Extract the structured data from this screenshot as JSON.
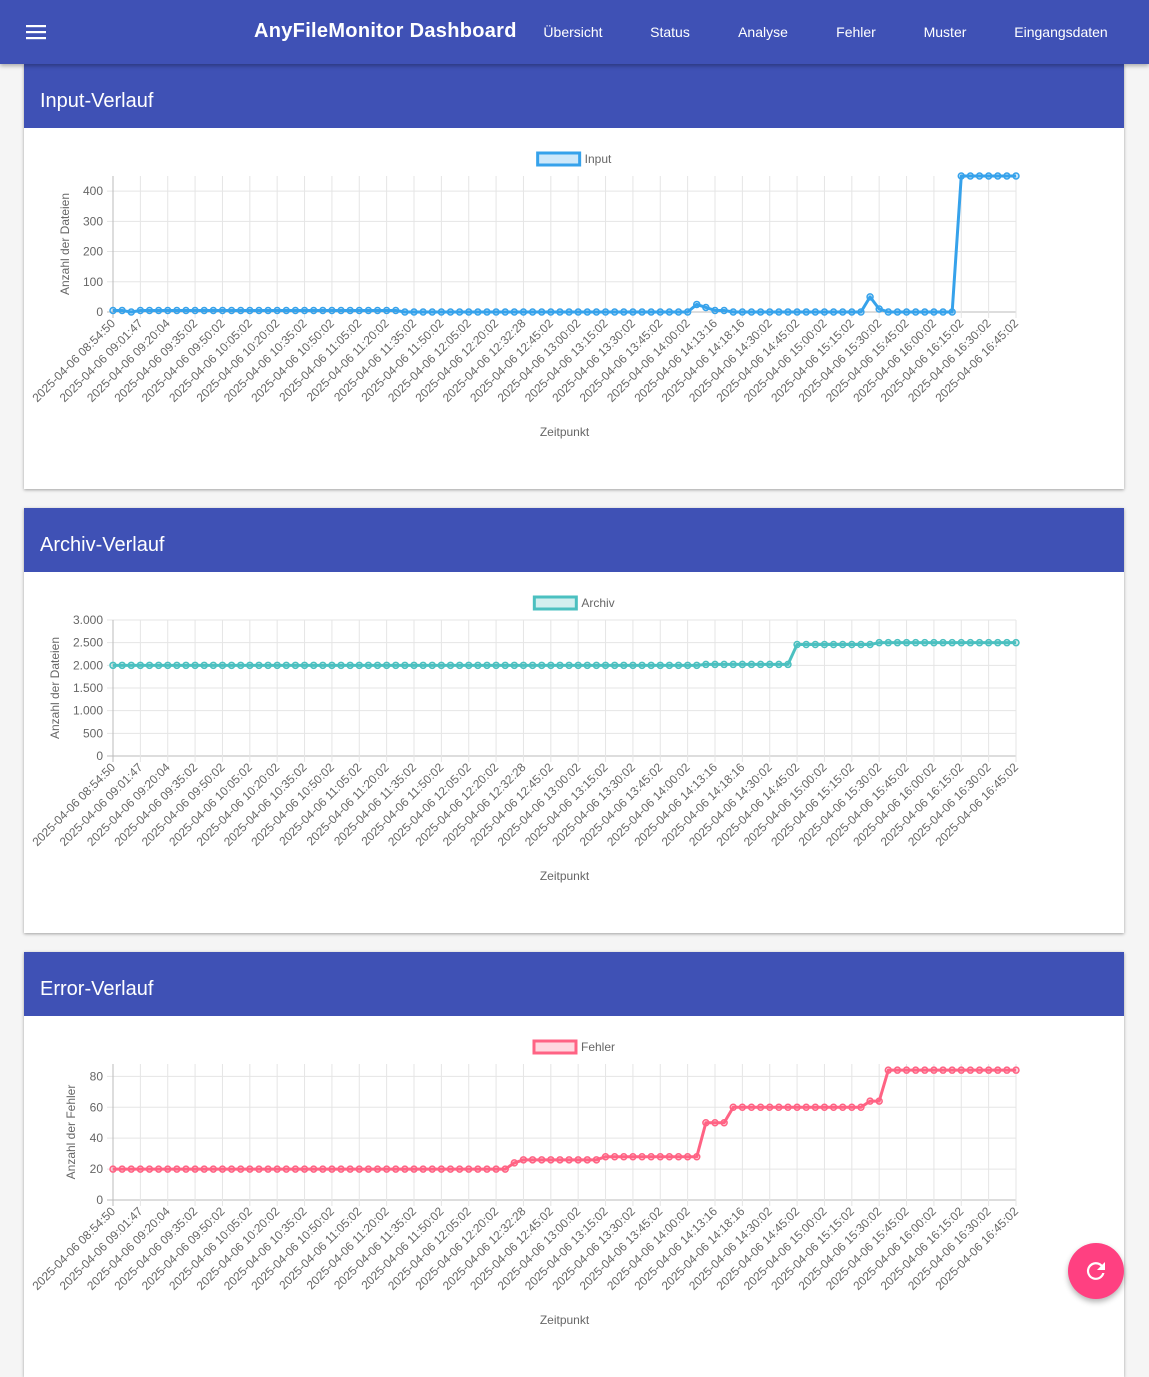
{
  "nav": {
    "title": "AnyFileMonitor Dashboard",
    "items": [
      "Übersicht",
      "Status",
      "Analyse",
      "Fehler",
      "Muster",
      "Eingangsdaten"
    ]
  },
  "chart_data": [
    {
      "type": "line",
      "title": "Input-Verlauf",
      "x_label": "Zeitpunkt",
      "y_label": "Anzahl der Dateien",
      "grid": true,
      "legend": "top",
      "categories": [
        "2025-04-06 08:54:50",
        null,
        null,
        "2025-04-06 09:01:47",
        null,
        null,
        "2025-04-06 09:20:04",
        null,
        null,
        "2025-04-06 09:35:02",
        null,
        null,
        "2025-04-06 09:50:02",
        null,
        null,
        "2025-04-06 10:05:02",
        null,
        null,
        "2025-04-06 10:20:02",
        null,
        null,
        "2025-04-06 10:35:02",
        null,
        null,
        "2025-04-06 10:50:02",
        null,
        null,
        "2025-04-06 11:05:02",
        null,
        null,
        "2025-04-06 11:20:02",
        null,
        null,
        "2025-04-06 11:35:02",
        null,
        null,
        "2025-04-06 11:50:02",
        null,
        null,
        "2025-04-06 12:05:02",
        null,
        null,
        "2025-04-06 12:20:02",
        null,
        null,
        "2025-04-06 12:32:28",
        null,
        null,
        "2025-04-06 12:45:02",
        null,
        null,
        "2025-04-06 13:00:02",
        null,
        null,
        "2025-04-06 13:15:02",
        null,
        null,
        "2025-04-06 13:30:02",
        null,
        null,
        "2025-04-06 13:45:02",
        null,
        null,
        "2025-04-06 14:00:02",
        null,
        null,
        "2025-04-06 14:13:16",
        null,
        null,
        "2025-04-06 14:18:16",
        null,
        null,
        "2025-04-06 14:30:02",
        null,
        null,
        "2025-04-06 14:45:02",
        null,
        null,
        "2025-04-06 15:00:02",
        null,
        null,
        "2025-04-06 15:15:02",
        null,
        null,
        "2025-04-06 15:30:02",
        null,
        null,
        "2025-04-06 15:45:02",
        null,
        null,
        "2025-04-06 16:00:02",
        null,
        null,
        "2025-04-06 16:15:02",
        null,
        null,
        "2025-04-06 16:30:02",
        null,
        null,
        "2025-04-06 16:45:02"
      ],
      "series": [
        {
          "name": "Input",
          "color": "#36a2eb",
          "fill": "rgba(54,162,235,0.25)",
          "values": [
            5,
            5,
            0,
            5,
            5,
            5,
            5,
            5,
            5,
            5,
            5,
            5,
            5,
            5,
            5,
            5,
            5,
            5,
            5,
            5,
            5,
            5,
            5,
            5,
            5,
            5,
            5,
            5,
            5,
            5,
            5,
            5,
            0,
            0,
            0,
            0,
            0,
            0,
            0,
            0,
            0,
            0,
            0,
            0,
            0,
            0,
            0,
            0,
            0,
            0,
            0,
            0,
            0,
            0,
            0,
            0,
            0,
            0,
            0,
            0,
            0,
            0,
            0,
            0,
            25,
            15,
            5,
            5,
            0,
            0,
            0,
            0,
            0,
            0,
            0,
            0,
            0,
            0,
            0,
            0,
            0,
            0,
            0,
            50,
            10,
            0,
            0,
            0,
            0,
            0,
            0,
            0,
            0,
            450,
            450,
            450,
            450,
            450,
            450,
            450
          ]
        }
      ],
      "ylim": [
        0,
        450
      ],
      "yticks": [
        0,
        100,
        200,
        300,
        400
      ]
    },
    {
      "type": "line",
      "title": "Archiv-Verlauf",
      "x_label": "Zeitpunkt",
      "y_label": "Anzahl der Dateien",
      "grid": true,
      "legend": "top",
      "categories": [
        "2025-04-06 08:54:50",
        null,
        null,
        "2025-04-06 09:01:47",
        null,
        null,
        "2025-04-06 09:20:04",
        null,
        null,
        "2025-04-06 09:35:02",
        null,
        null,
        "2025-04-06 09:50:02",
        null,
        null,
        "2025-04-06 10:05:02",
        null,
        null,
        "2025-04-06 10:20:02",
        null,
        null,
        "2025-04-06 10:35:02",
        null,
        null,
        "2025-04-06 10:50:02",
        null,
        null,
        "2025-04-06 11:05:02",
        null,
        null,
        "2025-04-06 11:20:02",
        null,
        null,
        "2025-04-06 11:35:02",
        null,
        null,
        "2025-04-06 11:50:02",
        null,
        null,
        "2025-04-06 12:05:02",
        null,
        null,
        "2025-04-06 12:20:02",
        null,
        null,
        "2025-04-06 12:32:28",
        null,
        null,
        "2025-04-06 12:45:02",
        null,
        null,
        "2025-04-06 13:00:02",
        null,
        null,
        "2025-04-06 13:15:02",
        null,
        null,
        "2025-04-06 13:30:02",
        null,
        null,
        "2025-04-06 13:45:02",
        null,
        null,
        "2025-04-06 14:00:02",
        null,
        null,
        "2025-04-06 14:13:16",
        null,
        null,
        "2025-04-06 14:18:16",
        null,
        null,
        "2025-04-06 14:30:02",
        null,
        null,
        "2025-04-06 14:45:02",
        null,
        null,
        "2025-04-06 15:00:02",
        null,
        null,
        "2025-04-06 15:15:02",
        null,
        null,
        "2025-04-06 15:30:02",
        null,
        null,
        "2025-04-06 15:45:02",
        null,
        null,
        "2025-04-06 16:00:02",
        null,
        null,
        "2025-04-06 16:15:02",
        null,
        null,
        "2025-04-06 16:30:02",
        null,
        null,
        "2025-04-06 16:45:02"
      ],
      "series": [
        {
          "name": "Archiv",
          "color": "#4bc0c0",
          "fill": "rgba(75,192,192,0.25)",
          "values": [
            2000,
            2000,
            2000,
            2000,
            2000,
            2000,
            2000,
            2000,
            2000,
            2000,
            2000,
            2000,
            2000,
            2000,
            2000,
            2000,
            2000,
            2000,
            2000,
            2000,
            2000,
            2000,
            2000,
            2000,
            2000,
            2000,
            2000,
            2000,
            2000,
            2000,
            2000,
            2000,
            2000,
            2000,
            2000,
            2000,
            2000,
            2000,
            2000,
            2000,
            2000,
            2000,
            2000,
            2000,
            2000,
            2000,
            2000,
            2000,
            2000,
            2000,
            2000,
            2000,
            2000,
            2000,
            2000,
            2000,
            2000,
            2000,
            2000,
            2000,
            2000,
            2000,
            2000,
            2000,
            2000,
            2020,
            2020,
            2020,
            2020,
            2020,
            2020,
            2020,
            2020,
            2020,
            2020,
            2460,
            2460,
            2460,
            2460,
            2460,
            2460,
            2460,
            2460,
            2460,
            2500,
            2500,
            2500,
            2500,
            2500,
            2500,
            2500,
            2500,
            2500,
            2500,
            2500,
            2500,
            2500,
            2500,
            2500,
            2500
          ]
        }
      ],
      "ylim": [
        0,
        3000
      ],
      "yticks": [
        0,
        500,
        {
          "value": 1000,
          "label": "1.000"
        },
        {
          "value": 1500,
          "label": "1.500"
        },
        {
          "value": 2000,
          "label": "2.000"
        },
        {
          "value": 2500,
          "label": "2.500"
        },
        {
          "value": 3000,
          "label": "3.000"
        }
      ]
    },
    {
      "type": "line",
      "title": "Error-Verlauf",
      "x_label": "Zeitpunkt",
      "y_label": "Anzahl der Fehler",
      "grid": true,
      "legend": "top",
      "categories": [
        "2025-04-06 08:54:50",
        null,
        null,
        "2025-04-06 09:01:47",
        null,
        null,
        "2025-04-06 09:20:04",
        null,
        null,
        "2025-04-06 09:35:02",
        null,
        null,
        "2025-04-06 09:50:02",
        null,
        null,
        "2025-04-06 10:05:02",
        null,
        null,
        "2025-04-06 10:20:02",
        null,
        null,
        "2025-04-06 10:35:02",
        null,
        null,
        "2025-04-06 10:50:02",
        null,
        null,
        "2025-04-06 11:05:02",
        null,
        null,
        "2025-04-06 11:20:02",
        null,
        null,
        "2025-04-06 11:35:02",
        null,
        null,
        "2025-04-06 11:50:02",
        null,
        null,
        "2025-04-06 12:05:02",
        null,
        null,
        "2025-04-06 12:20:02",
        null,
        null,
        "2025-04-06 12:32:28",
        null,
        null,
        "2025-04-06 12:45:02",
        null,
        null,
        "2025-04-06 13:00:02",
        null,
        null,
        "2025-04-06 13:15:02",
        null,
        null,
        "2025-04-06 13:30:02",
        null,
        null,
        "2025-04-06 13:45:02",
        null,
        null,
        "2025-04-06 14:00:02",
        null,
        null,
        "2025-04-06 14:13:16",
        null,
        null,
        "2025-04-06 14:18:16",
        null,
        null,
        "2025-04-06 14:30:02",
        null,
        null,
        "2025-04-06 14:45:02",
        null,
        null,
        "2025-04-06 15:00:02",
        null,
        null,
        "2025-04-06 15:15:02",
        null,
        null,
        "2025-04-06 15:30:02",
        null,
        null,
        "2025-04-06 15:45:02",
        null,
        null,
        "2025-04-06 16:00:02",
        null,
        null,
        "2025-04-06 16:15:02",
        null,
        null,
        "2025-04-06 16:30:02",
        null,
        null,
        "2025-04-06 16:45:02"
      ],
      "series": [
        {
          "name": "Fehler",
          "color": "#ff6384",
          "fill": "rgba(255,99,132,0.25)",
          "values": [
            20,
            20,
            20,
            20,
            20,
            20,
            20,
            20,
            20,
            20,
            20,
            20,
            20,
            20,
            20,
            20,
            20,
            20,
            20,
            20,
            20,
            20,
            20,
            20,
            20,
            20,
            20,
            20,
            20,
            20,
            20,
            20,
            20,
            20,
            20,
            20,
            20,
            20,
            20,
            20,
            20,
            20,
            20,
            20,
            24,
            26,
            26,
            26,
            26,
            26,
            26,
            26,
            26,
            26,
            28,
            28,
            28,
            28,
            28,
            28,
            28,
            28,
            28,
            28,
            28,
            50,
            50,
            50,
            60,
            60,
            60,
            60,
            60,
            60,
            60,
            60,
            60,
            60,
            60,
            60,
            60,
            60,
            60,
            64,
            64,
            84,
            84,
            84,
            84,
            84,
            84,
            84,
            84,
            84,
            84,
            84,
            84,
            84,
            84,
            84
          ]
        }
      ],
      "ylim": [
        0,
        88
      ],
      "yticks": [
        0,
        20,
        40,
        60,
        80
      ]
    }
  ]
}
